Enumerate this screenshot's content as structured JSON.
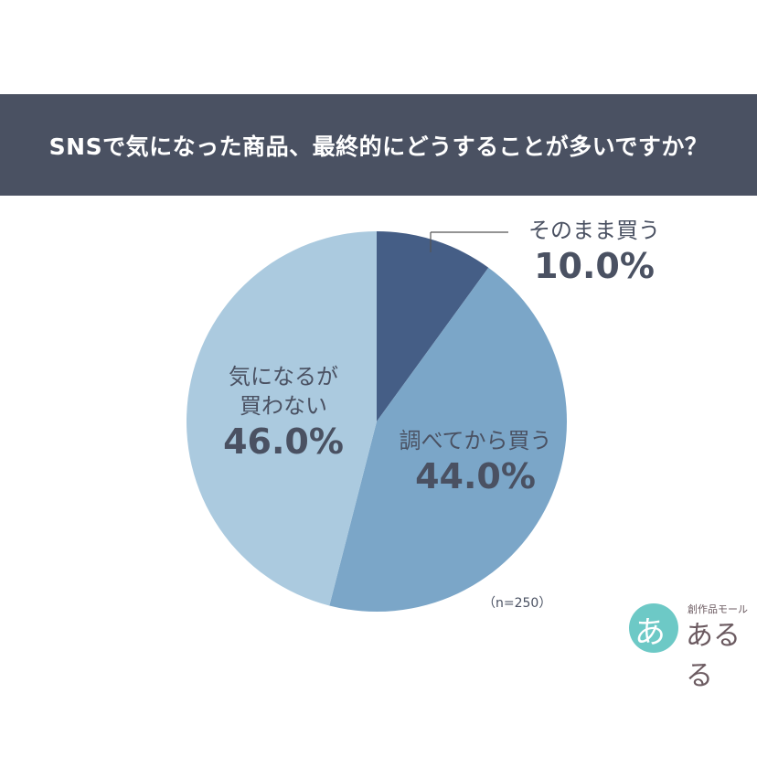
{
  "header": {
    "title": "SNSで気になった商品、最終的にどうすることが多いですか？"
  },
  "chart_data": {
    "type": "pie",
    "title": "SNSで気になった商品、最終的にどうすることが多いですか？",
    "slices": [
      {
        "label": "そのまま買う",
        "value": 10.0,
        "pct_text": "10.0%",
        "color": "#455e86"
      },
      {
        "label": "調べてから買う",
        "value": 44.0,
        "pct_text": "44.0%",
        "color": "#7ba6c8"
      },
      {
        "label": "気になるが\n買わない",
        "value": 46.0,
        "pct_text": "46.0%",
        "color": "#abcadf"
      }
    ],
    "start": "12 o'clock",
    "direction": "clockwise",
    "legend": "none",
    "note": "（n=250）"
  },
  "logo": {
    "glyph": "あ",
    "small_text": "創作品モール",
    "main_text": "あるる",
    "color": "#6dc9c6"
  }
}
